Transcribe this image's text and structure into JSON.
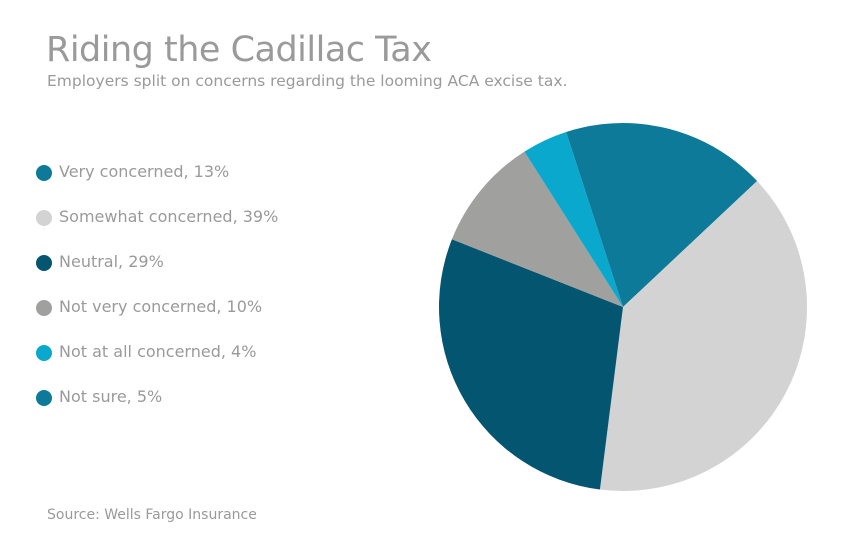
{
  "chart_data": {
    "type": "pie",
    "title": "Riding the Cadillac Tax",
    "subtitle": "Employers split on concerns regarding the looming ACA excise tax.",
    "source": "Source: Wells Fargo Insurance",
    "legend_position": "left",
    "slices": [
      {
        "label": "Very concerned, 13%",
        "value": 13,
        "color": "#0d7a99"
      },
      {
        "label": "Somewhat concerned, 39%",
        "value": 39,
        "color": "#d4d3d4"
      },
      {
        "label": "Neutral, 29%",
        "value": 29,
        "color": "#045570"
      },
      {
        "label": "Not very concerned, 10%",
        "value": 10,
        "color": "#a0a09f"
      },
      {
        "label": "Not at all concerned, 4%",
        "value": 4,
        "color": "#0aa8cc"
      },
      {
        "label": "Not sure, 5%",
        "value": 5,
        "color": "#0d7a99"
      }
    ]
  }
}
